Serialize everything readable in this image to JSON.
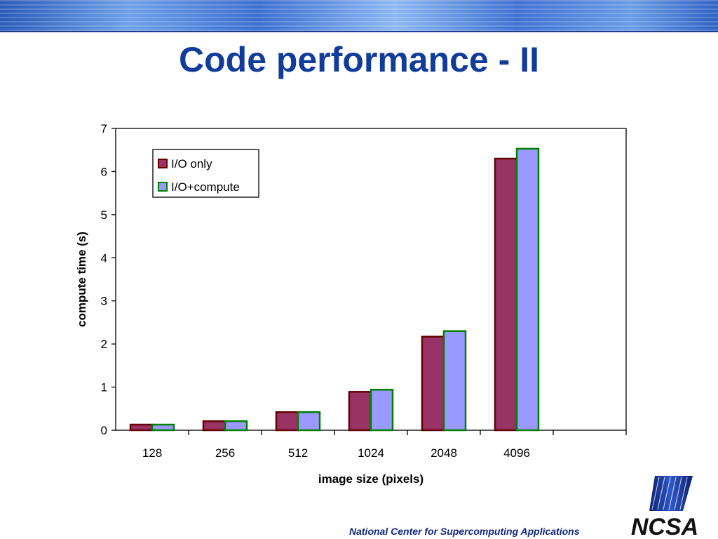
{
  "slide": {
    "title": "Code performance - II",
    "footer": "National Center for Supercomputing Applications",
    "logo_text": "NCSA"
  },
  "colors": {
    "title": "#123c9a",
    "io_only_fill": "#993366",
    "io_only_stroke": "#660000",
    "io_compute_fill": "#9999ff",
    "io_compute_stroke": "#008000"
  },
  "chart_data": {
    "type": "bar",
    "categories": [
      "128",
      "256",
      "512",
      "1024",
      "2048",
      "4096",
      ""
    ],
    "series": [
      {
        "name": "I/O only",
        "values": [
          0.13,
          0.21,
          0.42,
          0.89,
          2.17,
          6.3,
          null
        ]
      },
      {
        "name": "I/O+compute",
        "values": [
          0.13,
          0.21,
          0.42,
          0.94,
          2.3,
          6.53,
          null
        ]
      }
    ],
    "xlabel": "image size (pixels)",
    "ylabel": "compute time (s)",
    "ylim": [
      0,
      7
    ],
    "yticks": [
      "0",
      "1",
      "2",
      "3",
      "4",
      "5",
      "6",
      "7"
    ],
    "grid": false,
    "legend": "top-left"
  }
}
